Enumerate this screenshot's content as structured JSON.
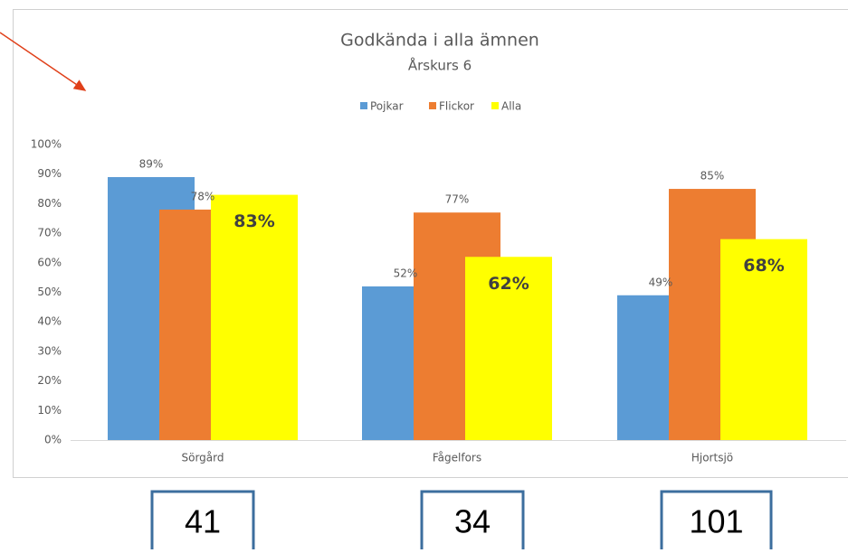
{
  "chart_data": {
    "type": "bar",
    "title": "Godkända i alla ämnen",
    "subtitle": "Årskurs 6",
    "categories": [
      "Sörgård",
      "Fågelfors",
      "Hjortsjö"
    ],
    "series": [
      {
        "name": "Pojkar",
        "color": "#5b9bd5",
        "values": [
          89,
          52,
          49
        ],
        "value_labels": [
          "89%",
          "52%",
          "49%"
        ]
      },
      {
        "name": "Flickor",
        "color": "#ed7d31",
        "values": [
          78,
          77,
          85
        ],
        "value_labels": [
          "78%",
          "77%",
          "85%"
        ]
      },
      {
        "name": "Alla",
        "color": "#ffff00",
        "values": [
          83,
          62,
          68
        ],
        "value_labels": [
          "83%",
          "62%",
          "68%"
        ]
      }
    ],
    "ylim": [
      0,
      100
    ],
    "yticks": [
      {
        "value": 0,
        "label": "0%"
      },
      {
        "value": 10,
        "label": "10%"
      },
      {
        "value": 20,
        "label": "20%"
      },
      {
        "value": 30,
        "label": "30%"
      },
      {
        "value": 40,
        "label": "40%"
      },
      {
        "value": 50,
        "label": "50%"
      },
      {
        "value": 60,
        "label": "60%"
      },
      {
        "value": 70,
        "label": "70%"
      },
      {
        "value": 80,
        "label": "80%"
      },
      {
        "value": 90,
        "label": "90%"
      },
      {
        "value": 100,
        "label": "100%"
      }
    ],
    "grid": false,
    "legend": "top"
  },
  "boxes": [
    41,
    34,
    101
  ]
}
